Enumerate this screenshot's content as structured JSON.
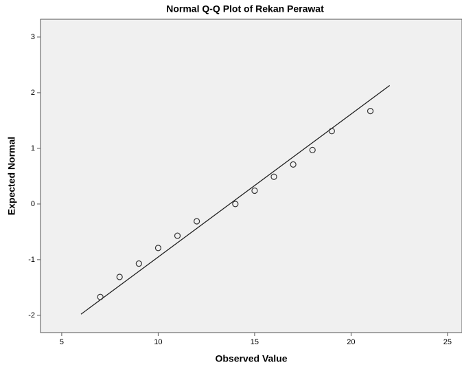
{
  "chart_data": {
    "type": "scatter",
    "title": "Normal Q-Q Plot of Rekan Perawat",
    "x_label": "Observed Value",
    "y_label": "Expected Normal",
    "x": [
      7,
      8,
      9,
      10,
      11,
      12,
      14,
      15,
      16,
      17,
      18,
      19,
      21
    ],
    "values": [
      -1.67,
      -1.31,
      -1.07,
      -0.79,
      -0.57,
      -0.31,
      0,
      0.24,
      0.49,
      0.71,
      0.97,
      1.31,
      1.67
    ],
    "reference_line": {
      "x": [
        6,
        22
      ],
      "y": [
        -1.98,
        2.13
      ]
    },
    "xlim": [
      3.9,
      25.75
    ],
    "ylim": [
      -2.31,
      3.32
    ],
    "xticks": [
      5,
      10,
      15,
      20,
      25
    ],
    "yticks": [
      -2,
      -1,
      0,
      1,
      2,
      3
    ]
  }
}
